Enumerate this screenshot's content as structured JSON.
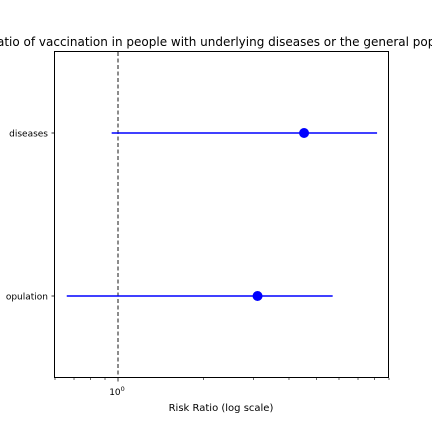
{
  "chart_data": {
    "type": "forest",
    "title": "Risk ratio of vaccination in people with underlying diseases or the general population",
    "xlabel": "Risk Ratio (log scale)",
    "ylabel": "",
    "xscale": "log",
    "xlim": [
      0.6,
      9.0
    ],
    "xticks": [
      {
        "value": 1,
        "label": "10",
        "exponent": "0"
      }
    ],
    "reference_line": {
      "x": 1,
      "style": "dashed",
      "color": "#000000"
    },
    "categories": [
      "underlying diseases",
      "general population"
    ],
    "visible_tick_labels": [
      "diseases",
      "opulation"
    ],
    "points": [
      {
        "category": "underlying diseases",
        "estimate": 4.52,
        "ci_lower": 0.95,
        "ci_upper": 8.17
      },
      {
        "category": "general population",
        "estimate": 3.1,
        "ci_lower": 0.66,
        "ci_upper": 5.7
      }
    ],
    "colors": {
      "point": "#0000ff",
      "line": "#0000ff",
      "axes": "#000000"
    },
    "grid": false,
    "legend": "none"
  }
}
